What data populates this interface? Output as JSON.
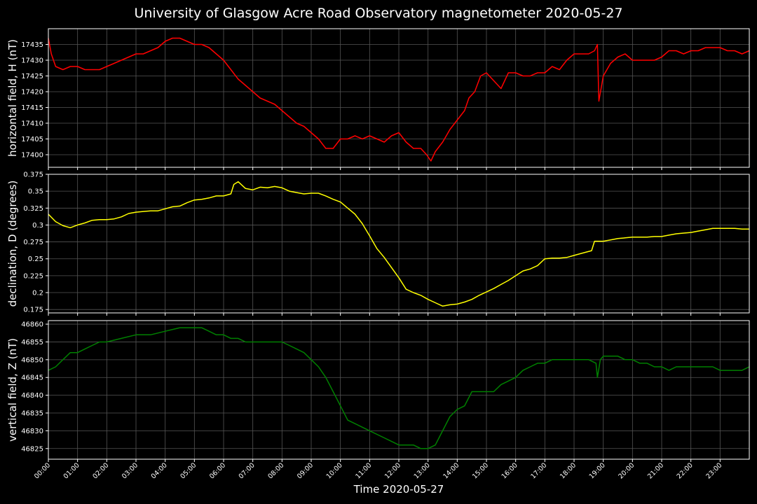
{
  "title": "University of Glasgow Acre Road Observatory magnetometer 2020-05-27",
  "xlabel": "Time 2020-05-27",
  "x_ticks": [
    "00:00",
    "01:00",
    "02:00",
    "03:00",
    "04:00",
    "05:00",
    "06:00",
    "07:00",
    "08:00",
    "09:00",
    "10:00",
    "11:00",
    "12:00",
    "13:00",
    "14:00",
    "15:00",
    "16:00",
    "17:00",
    "18:00",
    "19:00",
    "20:00",
    "21:00",
    "22:00",
    "23:00"
  ],
  "x_range_hours": [
    0,
    24
  ],
  "background": "#000000",
  "grid": true,
  "chart_data": [
    {
      "type": "line",
      "name": "horizontal",
      "ylabel": "horizontal field, H (nT)",
      "color": "#ff0000",
      "ylim": [
        17396,
        17440
      ],
      "yticks": [
        17400,
        17405,
        17410,
        17415,
        17420,
        17425,
        17430,
        17435
      ],
      "x_hours": [
        0,
        0.1,
        0.25,
        0.5,
        0.75,
        1.0,
        1.25,
        1.5,
        1.75,
        2.0,
        2.25,
        2.5,
        2.75,
        3.0,
        3.25,
        3.5,
        3.75,
        4.0,
        4.25,
        4.5,
        4.75,
        5.0,
        5.25,
        5.5,
        5.75,
        6.0,
        6.25,
        6.5,
        6.75,
        7.0,
        7.25,
        7.5,
        7.75,
        8.0,
        8.25,
        8.5,
        8.75,
        9.0,
        9.25,
        9.5,
        9.75,
        10.0,
        10.25,
        10.5,
        10.75,
        11.0,
        11.25,
        11.5,
        11.75,
        12.0,
        12.25,
        12.5,
        12.75,
        12.95,
        13.1,
        13.25,
        13.5,
        13.75,
        14.0,
        14.25,
        14.4,
        14.6,
        14.8,
        15.0,
        15.2,
        15.5,
        15.75,
        16.0,
        16.25,
        16.5,
        16.75,
        17.0,
        17.25,
        17.5,
        17.75,
        18.0,
        18.3,
        18.5,
        18.7,
        18.8,
        18.85,
        19.0,
        19.25,
        19.5,
        19.75,
        20.0,
        20.25,
        20.5,
        20.75,
        21.0,
        21.25,
        21.5,
        21.75,
        22.0,
        22.25,
        22.5,
        22.75,
        23.0,
        23.25,
        23.5,
        23.75,
        24.0
      ],
      "values": [
        17437,
        17432,
        17428,
        17427,
        17428,
        17428,
        17427,
        17427,
        17427,
        17428,
        17429,
        17430,
        17431,
        17432,
        17432,
        17433,
        17434,
        17436,
        17437,
        17437,
        17436,
        17435,
        17435,
        17434,
        17432,
        17430,
        17427,
        17424,
        17422,
        17420,
        17418,
        17417,
        17416,
        17414,
        17412,
        17410,
        17409,
        17407,
        17405,
        17402,
        17402,
        17405,
        17405,
        17406,
        17405,
        17406,
        17405,
        17404,
        17406,
        17407,
        17404,
        17402,
        17402,
        17400,
        17398,
        17401,
        17404,
        17408,
        17411,
        17414,
        17418,
        17420,
        17425,
        17426,
        17424,
        17421,
        17426,
        17426,
        17425,
        17425,
        17426,
        17426,
        17428,
        17427,
        17430,
        17432,
        17432,
        17432,
        17433,
        17435,
        17417,
        17425,
        17429,
        17431,
        17432,
        17430,
        17430,
        17430,
        17430,
        17431,
        17433,
        17433,
        17432,
        17433,
        17433,
        17434,
        17434,
        17434,
        17433,
        17433,
        17432,
        17433
      ]
    },
    {
      "type": "line",
      "name": "declination",
      "ylabel": "declination, D (degrees)",
      "color": "#ffff00",
      "ylim": [
        0.17,
        0.375
      ],
      "yticks": [
        0.175,
        0.2,
        0.225,
        0.25,
        0.275,
        0.3,
        0.325,
        0.35,
        0.375
      ],
      "x_hours": [
        0,
        0.25,
        0.5,
        0.75,
        1.0,
        1.25,
        1.5,
        1.75,
        2.0,
        2.25,
        2.5,
        2.75,
        3.0,
        3.25,
        3.5,
        3.75,
        4.0,
        4.25,
        4.5,
        4.75,
        5.0,
        5.25,
        5.5,
        5.75,
        6.0,
        6.25,
        6.35,
        6.5,
        6.75,
        7.0,
        7.25,
        7.5,
        7.75,
        8.0,
        8.25,
        8.5,
        8.75,
        9.0,
        9.25,
        9.5,
        9.75,
        10.0,
        10.25,
        10.5,
        10.75,
        11.0,
        11.25,
        11.5,
        11.75,
        12.0,
        12.25,
        12.5,
        12.75,
        13.0,
        13.25,
        13.5,
        13.75,
        14.0,
        14.25,
        14.5,
        14.75,
        15.0,
        15.25,
        15.5,
        15.75,
        16.0,
        16.25,
        16.5,
        16.75,
        17.0,
        17.25,
        17.5,
        17.75,
        18.0,
        18.25,
        18.6,
        18.7,
        19.0,
        19.25,
        19.5,
        19.75,
        20.0,
        20.25,
        20.5,
        20.75,
        21.0,
        21.25,
        21.5,
        21.75,
        22.0,
        22.25,
        22.5,
        22.75,
        23.0,
        23.25,
        23.5,
        23.75,
        24.0
      ],
      "values": [
        0.316,
        0.305,
        0.299,
        0.296,
        0.3,
        0.303,
        0.307,
        0.308,
        0.308,
        0.309,
        0.312,
        0.317,
        0.319,
        0.32,
        0.321,
        0.321,
        0.324,
        0.327,
        0.328,
        0.333,
        0.337,
        0.338,
        0.34,
        0.343,
        0.343,
        0.346,
        0.36,
        0.364,
        0.354,
        0.352,
        0.356,
        0.355,
        0.357,
        0.355,
        0.35,
        0.348,
        0.346,
        0.347,
        0.347,
        0.343,
        0.338,
        0.334,
        0.325,
        0.316,
        0.302,
        0.284,
        0.265,
        0.252,
        0.237,
        0.222,
        0.205,
        0.2,
        0.196,
        0.19,
        0.185,
        0.18,
        0.182,
        0.183,
        0.186,
        0.19,
        0.196,
        0.201,
        0.206,
        0.212,
        0.218,
        0.225,
        0.232,
        0.235,
        0.24,
        0.25,
        0.251,
        0.251,
        0.252,
        0.255,
        0.258,
        0.262,
        0.276,
        0.276,
        0.278,
        0.28,
        0.281,
        0.282,
        0.282,
        0.282,
        0.283,
        0.283,
        0.285,
        0.287,
        0.288,
        0.289,
        0.291,
        0.293,
        0.295,
        0.295,
        0.295,
        0.295,
        0.294,
        0.294
      ]
    },
    {
      "type": "line",
      "name": "vertical",
      "ylabel": "vertical field, Z (nT)",
      "color": "#008000",
      "ylim": [
        46822,
        46861
      ],
      "yticks": [
        46825,
        46830,
        46835,
        46840,
        46845,
        46850,
        46855,
        46860
      ],
      "x_hours": [
        0,
        0.25,
        0.5,
        0.75,
        1.0,
        1.25,
        1.5,
        1.75,
        2.0,
        2.5,
        3.0,
        3.5,
        4.0,
        4.5,
        5.0,
        5.25,
        5.5,
        5.75,
        6.0,
        6.25,
        6.5,
        6.75,
        7.0,
        7.25,
        7.5,
        7.75,
        8.0,
        8.25,
        8.5,
        8.75,
        9.0,
        9.25,
        9.5,
        9.75,
        10.0,
        10.25,
        10.5,
        10.75,
        11.0,
        11.25,
        11.5,
        11.75,
        12.0,
        12.25,
        12.5,
        12.75,
        13.0,
        13.25,
        13.5,
        13.75,
        14.0,
        14.25,
        14.5,
        14.75,
        15.0,
        15.25,
        15.5,
        15.75,
        16.0,
        16.25,
        16.5,
        16.75,
        17.0,
        17.25,
        17.5,
        17.75,
        18.0,
        18.25,
        18.5,
        18.75,
        18.8,
        18.9,
        19.0,
        19.25,
        19.5,
        19.75,
        20.0,
        20.25,
        20.5,
        20.75,
        21.0,
        21.25,
        21.5,
        21.75,
        22.0,
        22.25,
        22.5,
        22.75,
        23.0,
        23.25,
        23.5,
        23.75,
        24.0
      ],
      "values": [
        46847,
        46848,
        46850,
        46852,
        46852,
        46853,
        46854,
        46855,
        46855,
        46856,
        46857,
        46857,
        46858,
        46859,
        46859,
        46859,
        46858,
        46857,
        46857,
        46856,
        46856,
        46855,
        46855,
        46855,
        46855,
        46855,
        46855,
        46854,
        46853,
        46852,
        46850,
        46848,
        46845,
        46841,
        46837,
        46833,
        46832,
        46831,
        46830,
        46829,
        46828,
        46827,
        46826,
        46826,
        46826,
        46825,
        46825,
        46826,
        46830,
        46834,
        46836,
        46837,
        46841,
        46841,
        46841,
        46841,
        46843,
        46844,
        46845,
        46847,
        46848,
        46849,
        46849,
        46850,
        46850,
        46850,
        46850,
        46850,
        46850,
        46849,
        46845,
        46850,
        46851,
        46851,
        46851,
        46850,
        46850,
        46849,
        46849,
        46848,
        46848,
        46847,
        46848,
        46848,
        46848,
        46848,
        46848,
        46848,
        46847,
        46847,
        46847,
        46847,
        46848
      ]
    }
  ]
}
